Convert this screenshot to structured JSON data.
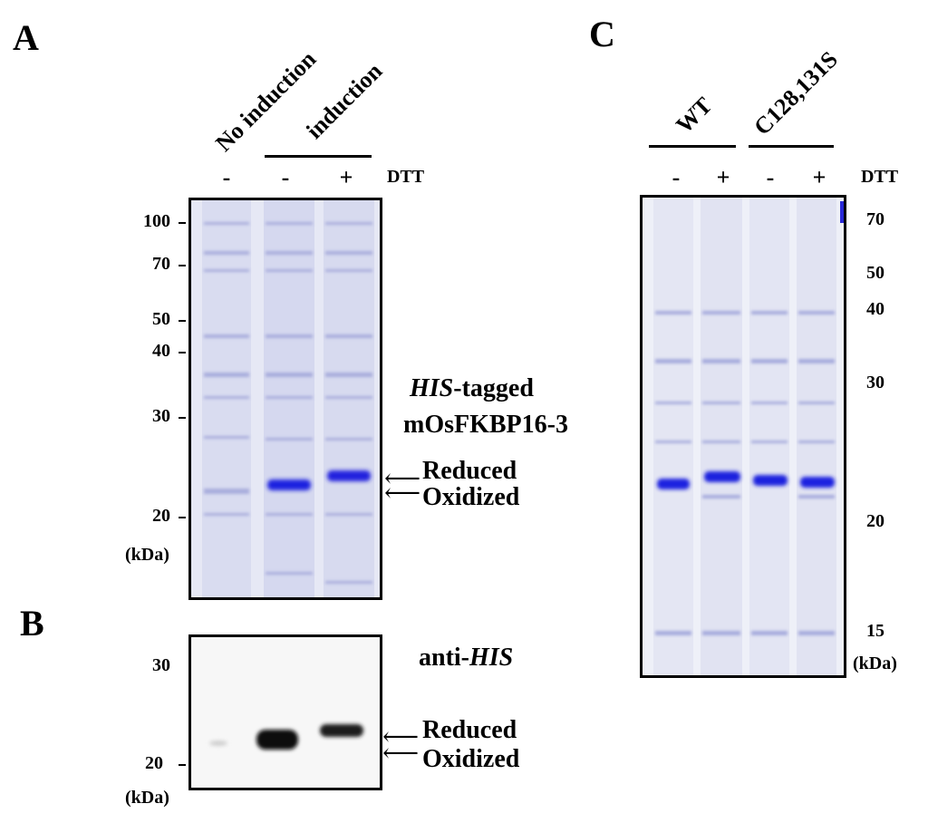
{
  "panelA": {
    "letter": "A",
    "lanes": [
      "No induction",
      "induction"
    ],
    "dtt_signs": [
      "-",
      "-",
      "+"
    ],
    "dtt_label": "DTT",
    "markers": [
      "100",
      "70",
      "50",
      "40",
      "30",
      "20"
    ],
    "unit": "(kDa)",
    "protein_line1_italic": "HIS",
    "protein_line1_rest": "-tagged",
    "protein_line2": "mOsFKBP16-3",
    "reduced": "Reduced",
    "oxidized": "Oxidized"
  },
  "panelB": {
    "letter": "B",
    "antibody_prefix": "anti-",
    "antibody_italic": "HIS",
    "markers": [
      "30",
      "20"
    ],
    "unit": "(kDa)",
    "reduced": "Reduced",
    "oxidized": "Oxidized"
  },
  "panelC": {
    "letter": "C",
    "groups": [
      "WT",
      "C128,131S"
    ],
    "dtt_signs": [
      "-",
      "+",
      "-",
      "+"
    ],
    "dtt_label": "DTT",
    "markers": [
      "70",
      "50",
      "40",
      "30",
      "20",
      "15"
    ],
    "unit": "(kDa)"
  },
  "colors": {
    "coomassie": "#2a2ad8",
    "gel_bg": "#e4e6f4",
    "western_band": "#111111"
  }
}
